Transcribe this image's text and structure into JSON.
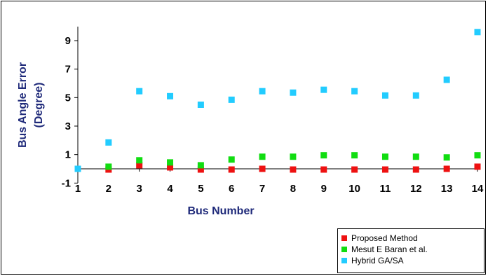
{
  "chart_data": {
    "type": "scatter",
    "title": "",
    "xlabel": "Bus Number",
    "ylabel_line1": "Bus Angle Error",
    "ylabel_line2": "(Degree)",
    "x": [
      1,
      2,
      3,
      4,
      5,
      6,
      7,
      8,
      9,
      10,
      11,
      12,
      13,
      14
    ],
    "x_tick_labels": [
      "1",
      "2",
      "3",
      "4",
      "5",
      "6",
      "7",
      "8",
      "9",
      "10",
      "11",
      "12",
      "13",
      "14"
    ],
    "y_tick_labels": [
      "-1",
      "1",
      "3",
      "5",
      "7",
      "9"
    ],
    "yticks": [
      -1,
      1,
      3,
      5,
      7,
      9
    ],
    "ylim": [
      -1,
      10
    ],
    "xlim": [
      1,
      14
    ],
    "grid": false,
    "legend_position": "bottom-right",
    "series": [
      {
        "name": "Proposed Method",
        "color": "#ee1111",
        "values": [
          0,
          -0.05,
          0.25,
          0.1,
          -0.05,
          -0.05,
          0,
          -0.05,
          -0.05,
          -0.05,
          -0.05,
          -0.05,
          0,
          0.15
        ]
      },
      {
        "name": "Mesut E Baran et al.",
        "color": "#11dd11",
        "values": [
          0,
          0.15,
          0.6,
          0.45,
          0.25,
          0.65,
          0.85,
          0.85,
          0.95,
          0.95,
          0.85,
          0.85,
          0.8,
          0.95
        ]
      },
      {
        "name": "Hybrid GA/SA",
        "color": "#22ccff",
        "values": [
          0,
          1.85,
          5.45,
          5.1,
          4.5,
          4.85,
          5.45,
          5.35,
          5.55,
          5.45,
          5.15,
          5.15,
          6.25,
          9.6
        ]
      }
    ]
  }
}
